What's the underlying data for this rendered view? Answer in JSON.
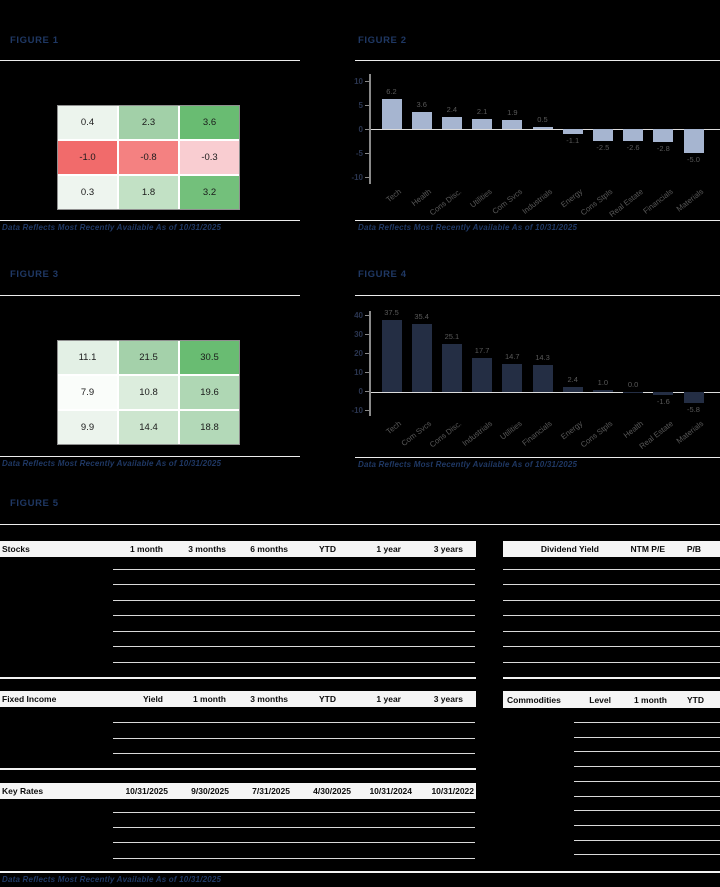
{
  "page": {
    "background": "#000000",
    "accent_navy": "#1f3864",
    "footer_caption": "Data Reflects Most Recently Available As of 10/31/2025"
  },
  "figures": [
    {
      "title": "FIGURE 1",
      "caption": "Data Reflects Most Recently Available As of 10/31/2025"
    },
    {
      "title": "FIGURE 2",
      "caption": "Data Reflects Most Recently Available As of 10/31/2025"
    },
    {
      "title": "FIGURE 3",
      "caption": "Data Reflects Most Recently Available As of 10/31/2025"
    },
    {
      "title": "FIGURE 4",
      "caption": "Data Reflects Most Recently Available As of 10/31/2025"
    },
    {
      "title": "FIGURE 5",
      "caption": "Data Reflects Most Recently Available As of 10/31/2025"
    }
  ],
  "chart_data": [
    {
      "figure": "FIGURE 1",
      "type": "heatmap",
      "rows": [
        [
          0.4,
          2.3,
          3.6
        ],
        [
          -1.0,
          -0.8,
          -0.3
        ],
        [
          0.3,
          1.8,
          3.2
        ]
      ],
      "cell_colors": [
        [
          "#ecf4ed",
          "#a2d0a8",
          "#69bc72"
        ],
        [
          "#f16b6b",
          "#f48181",
          "#f9cdd1"
        ],
        [
          "#eef5ef",
          "#c2e1c5",
          "#73c07b"
        ]
      ]
    },
    {
      "figure": "FIGURE 2",
      "type": "bar",
      "categories": [
        "Tech",
        "Health",
        "Cons Disc.",
        "Utilities",
        "Com Svcs",
        "Industrials",
        "Energy",
        "Cons Stpls",
        "Real Estate",
        "Financials",
        "Materials"
      ],
      "values": [
        6.2,
        3.6,
        2.4,
        2.1,
        1.9,
        0.5,
        -1.1,
        -2.5,
        -2.6,
        -2.8,
        -5.0
      ],
      "ylim": [
        -10,
        10
      ],
      "yticks": [
        10,
        5,
        0,
        -5,
        -10
      ],
      "bar_color": "#a6b5d0",
      "grid": false,
      "value_labels": true,
      "legend": "none"
    },
    {
      "figure": "FIGURE 3",
      "type": "heatmap",
      "rows": [
        [
          11.1,
          21.5,
          30.5
        ],
        [
          7.9,
          10.8,
          19.6
        ],
        [
          9.9,
          14.4,
          18.8
        ]
      ],
      "cell_colors": [
        [
          "#e3f0e5",
          "#a4d1aa",
          "#69bc72"
        ],
        [
          "#fafdfa",
          "#dceddd",
          "#afd7b4"
        ],
        [
          "#ecf4ed",
          "#cce5ce",
          "#b3d9b8"
        ]
      ]
    },
    {
      "figure": "FIGURE 4",
      "type": "bar",
      "categories": [
        "Tech",
        "Com Svcs",
        "Cons Disc.",
        "Industrials",
        "Utilities",
        "Financials",
        "Energy",
        "Cons Stpls",
        "Health",
        "Real Estate",
        "Materials"
      ],
      "values": [
        37.5,
        35.4,
        25.1,
        17.7,
        14.7,
        14.3,
        2.4,
        1.0,
        0.0,
        -1.6,
        -5.8
      ],
      "ylim": [
        -10,
        40
      ],
      "yticks": [
        40,
        30,
        20,
        10,
        0,
        -10
      ],
      "bar_color": "#242e44",
      "grid": false,
      "value_labels": true,
      "legend": "none"
    }
  ],
  "tables": {
    "stocks": {
      "label": "Stocks",
      "columns": [
        "1 month",
        "3 months",
        "6 months",
        "YTD",
        "1 year",
        "3 years"
      ],
      "empty_rows": 7
    },
    "valuation": {
      "columns": [
        "Dividend Yield",
        "NTM P/E",
        "P/B"
      ],
      "empty_rows": 7
    },
    "fixed_income": {
      "label": "Fixed Income",
      "columns": [
        "Yield",
        "1 month",
        "3 months",
        "YTD",
        "1 year",
        "3 years"
      ],
      "empty_rows": 3
    },
    "commodities": {
      "label": "Commodities",
      "columns": [
        "Level",
        "1 month",
        "YTD"
      ],
      "empty_rows": 10
    },
    "key_rates": {
      "label": "Key Rates",
      "columns": [
        "10/31/2025",
        "9/30/2025",
        "7/31/2025",
        "4/30/2025",
        "10/31/2024",
        "10/31/2022"
      ],
      "empty_rows": 4
    }
  }
}
